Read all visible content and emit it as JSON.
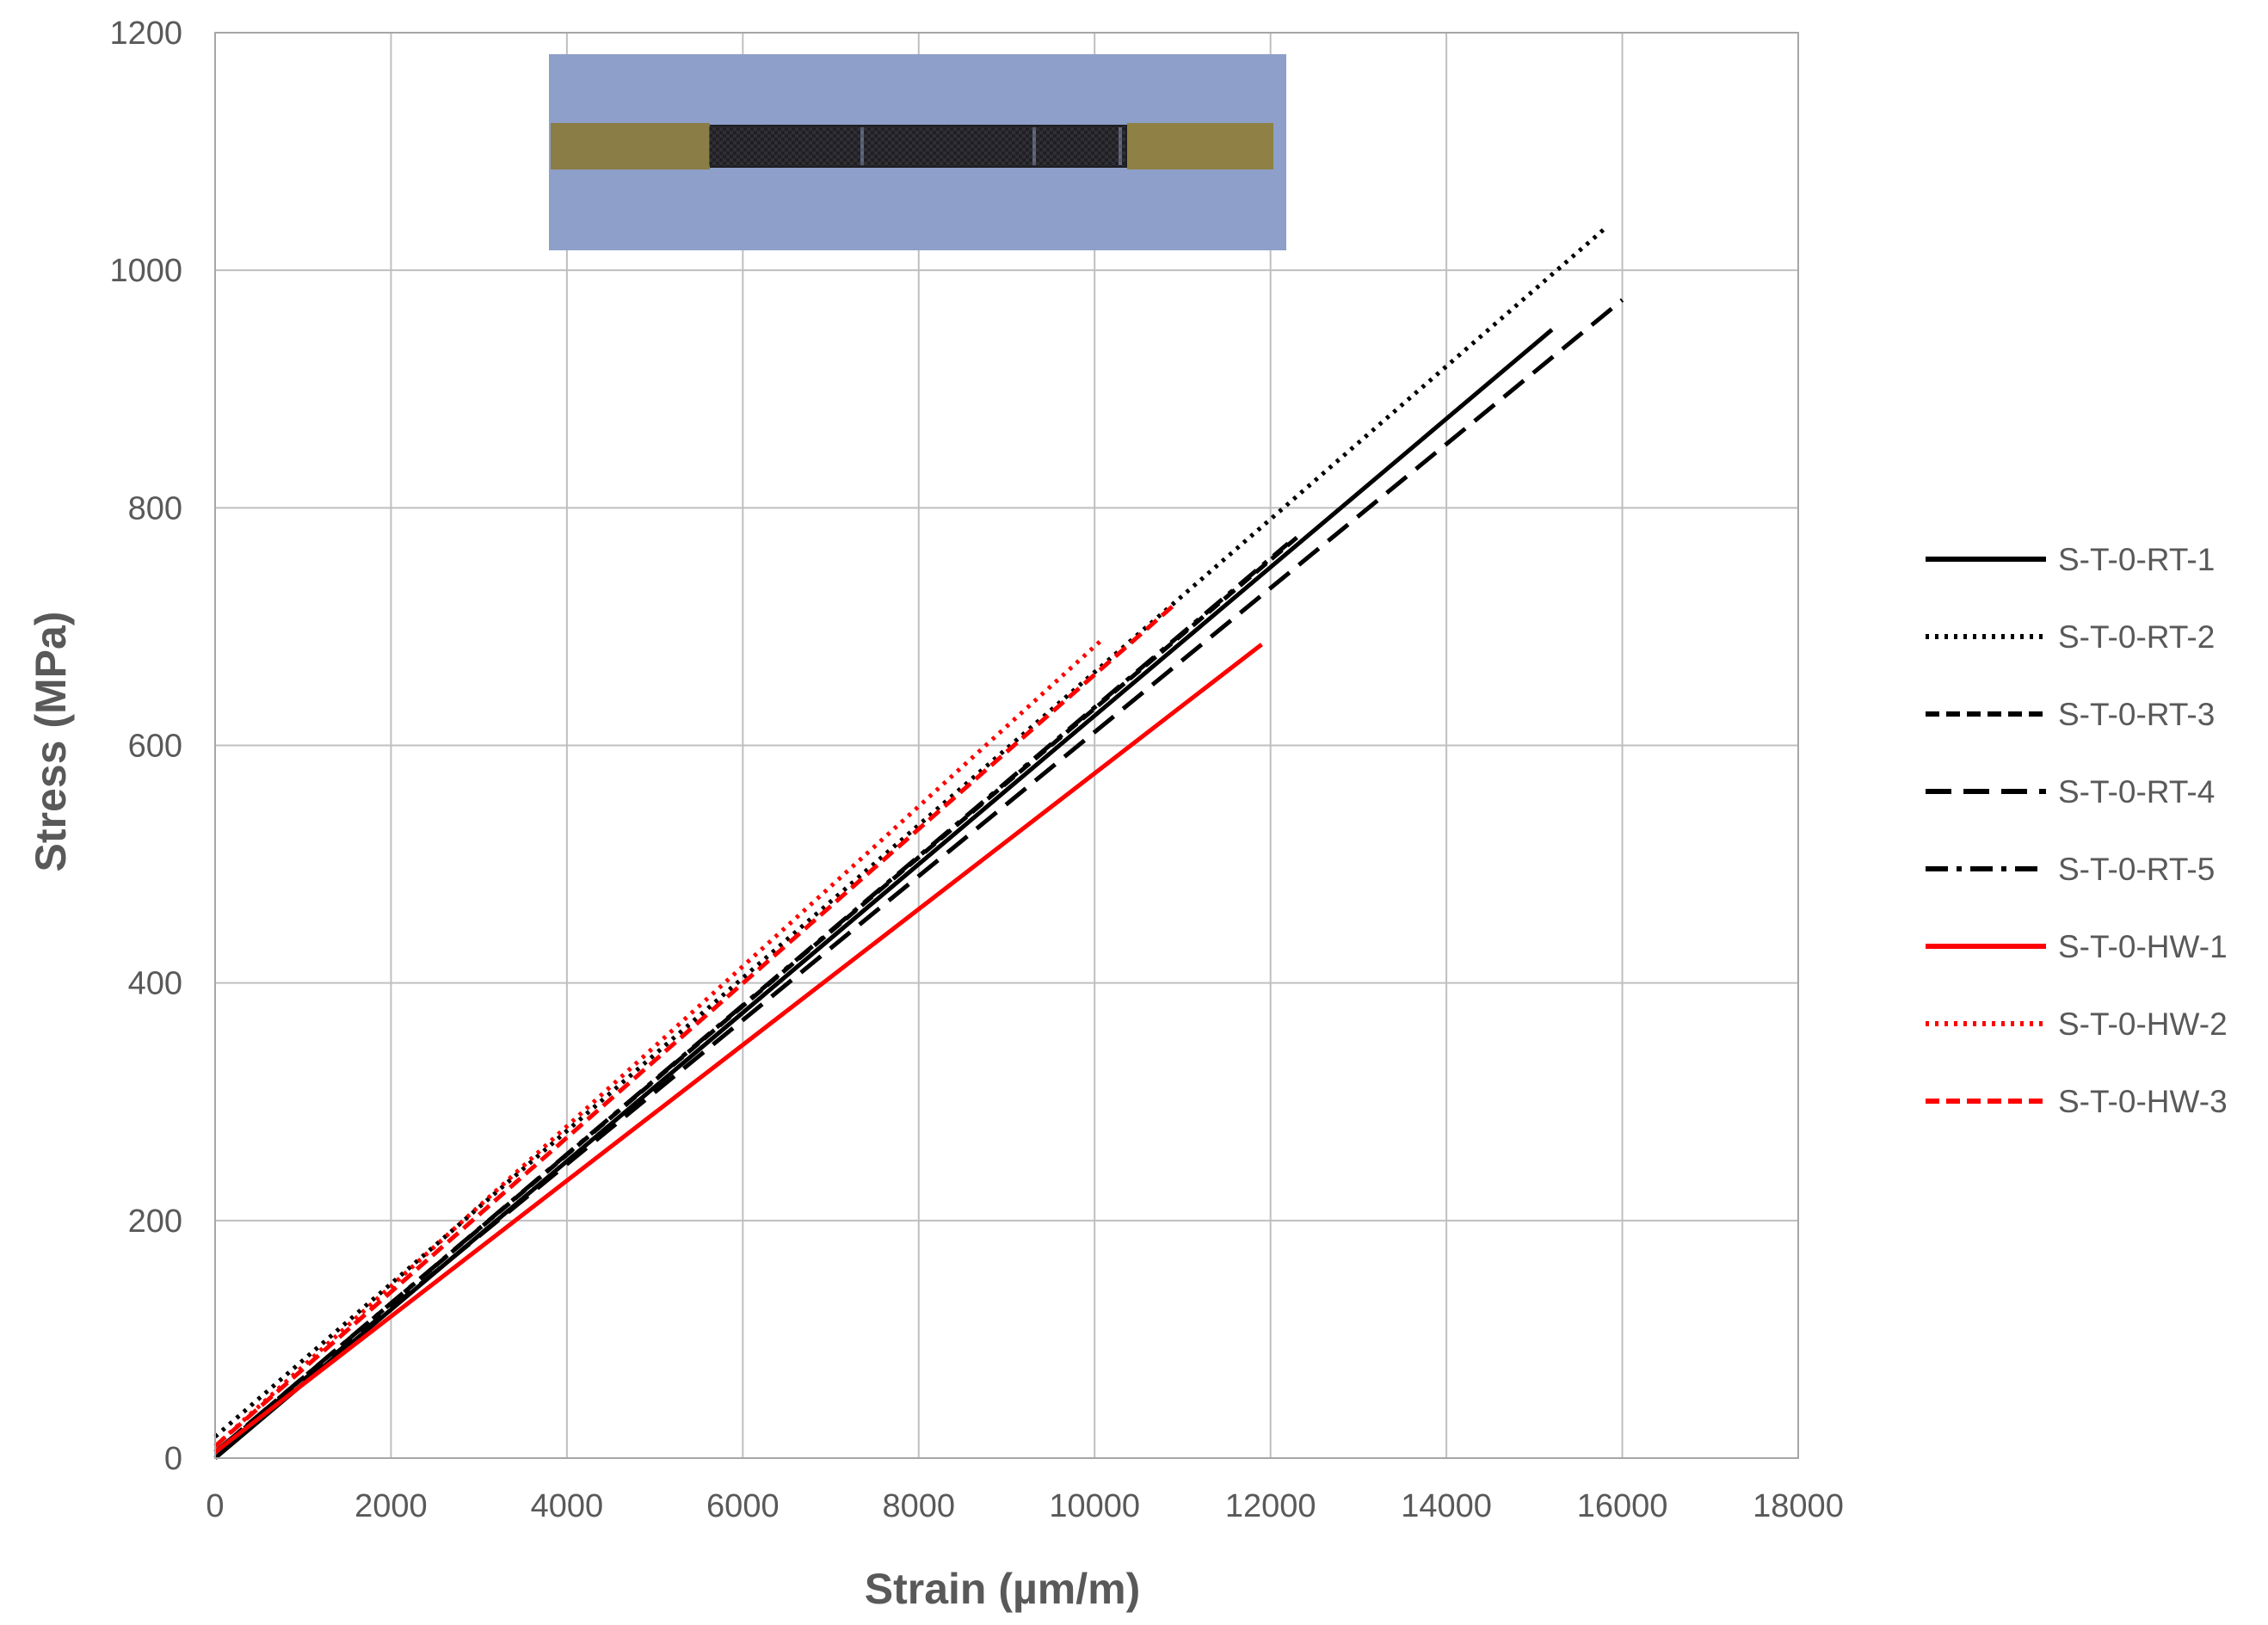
{
  "chart_data": {
    "type": "line",
    "title": "",
    "xlabel": "Strain (µm/m)",
    "ylabel": "Stress (MPa)",
    "xlim": [
      0,
      18000
    ],
    "ylim": [
      0,
      1200
    ],
    "xticks": [
      "0",
      "2000",
      "4000",
      "6000",
      "8000",
      "10000",
      "12000",
      "14000",
      "16000",
      "18000"
    ],
    "yticks": [
      "0",
      "200",
      "400",
      "600",
      "800",
      "1000",
      "1200"
    ],
    "grid": true,
    "legend_position": "right",
    "inset_image": "photo of tensile test specimen with label",
    "series": [
      {
        "name": "S-T-0-RT-1",
        "color": "#000000",
        "dash": "solid",
        "x": [
          0,
          15200
        ],
        "y": [
          0,
          950
        ]
      },
      {
        "name": "S-T-0-RT-2",
        "color": "#000000",
        "dash": "dotted",
        "x": [
          0,
          15800
        ],
        "y": [
          18,
          1035
        ]
      },
      {
        "name": "S-T-0-RT-3",
        "color": "#000000",
        "dash": "short-dash",
        "x": [
          0,
          12300
        ],
        "y": [
          5,
          775
        ]
      },
      {
        "name": "S-T-0-RT-4",
        "color": "#000000",
        "dash": "long-dash",
        "x": [
          0,
          16000
        ],
        "y": [
          5,
          975
        ]
      },
      {
        "name": "S-T-0-RT-5",
        "color": "#000000",
        "dash": "dash-dot",
        "x": [
          0,
          12200
        ],
        "y": [
          5,
          770
        ]
      },
      {
        "name": "S-T-0-HW-1",
        "color": "#ff0000",
        "dash": "solid",
        "x": [
          0,
          11900
        ],
        "y": [
          5,
          685
        ]
      },
      {
        "name": "S-T-0-HW-2",
        "color": "#ff0000",
        "dash": "dotted",
        "x": [
          0,
          10100
        ],
        "y": [
          10,
          690
        ]
      },
      {
        "name": "S-T-0-HW-3",
        "color": "#ff0000",
        "dash": "short-dash",
        "x": [
          0,
          10900
        ],
        "y": [
          10,
          718
        ]
      }
    ]
  }
}
